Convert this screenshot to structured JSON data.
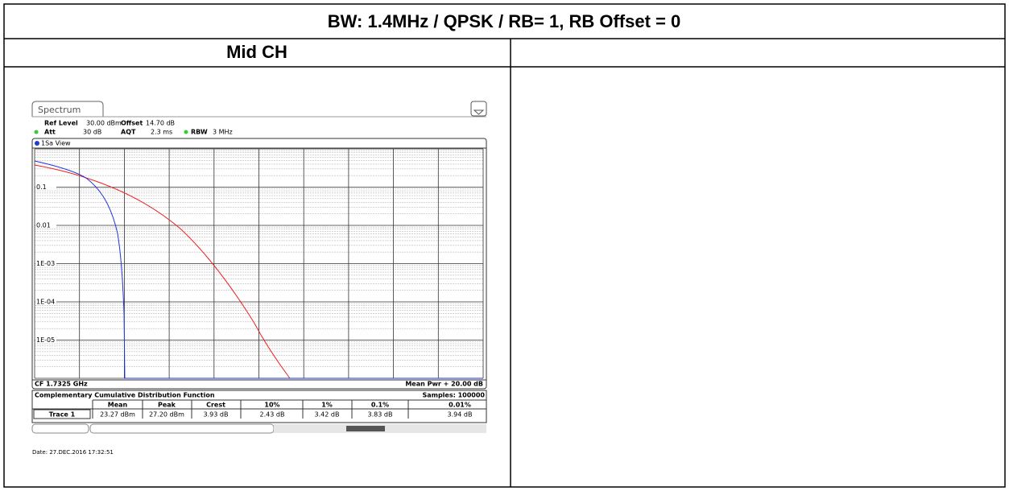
{
  "table": {
    "header": "BW: 1.4MHz / QPSK / RB= 1, RB Offset = 0",
    "subheader": "Mid CH",
    "screenshot": {
      "tab": "Spectrum",
      "settings": [
        {
          "label": "Ref Level",
          "value": "30.00 dBm"
        },
        {
          "label": "Offset",
          "value": "14.70 dB"
        },
        {
          "label": "Att",
          "value": "30 dB"
        },
        {
          "label": "AQT",
          "value": "2.3 ms"
        },
        {
          "label": "RBW",
          "value": "3 MHz"
        }
      ],
      "view": "1Sa View",
      "y_labels": [
        "0.1",
        "0.01",
        "1E-03",
        "1E-04",
        "1E-05"
      ],
      "footer_left": "CF 1.7325 GHz",
      "footer_right": "Mean Pwr + 20.00 dB",
      "ccdf": {
        "title": "Complementary Cumulative Distribution Function",
        "samples": "Samples: 100000",
        "columns": [
          "Mean",
          "Peak",
          "Crest",
          "10%",
          "1%",
          "0.1%",
          "0.01%"
        ],
        "row_label": "Trace 1",
        "row": [
          "23.27 dBm",
          "27.20 dBm",
          "3.93 dB",
          "2.43 dB",
          "3.42 dB",
          "3.83 dB",
          "3.94 dB"
        ]
      },
      "date": "Date: 27.DEC.2016  17:32:51"
    }
  }
}
